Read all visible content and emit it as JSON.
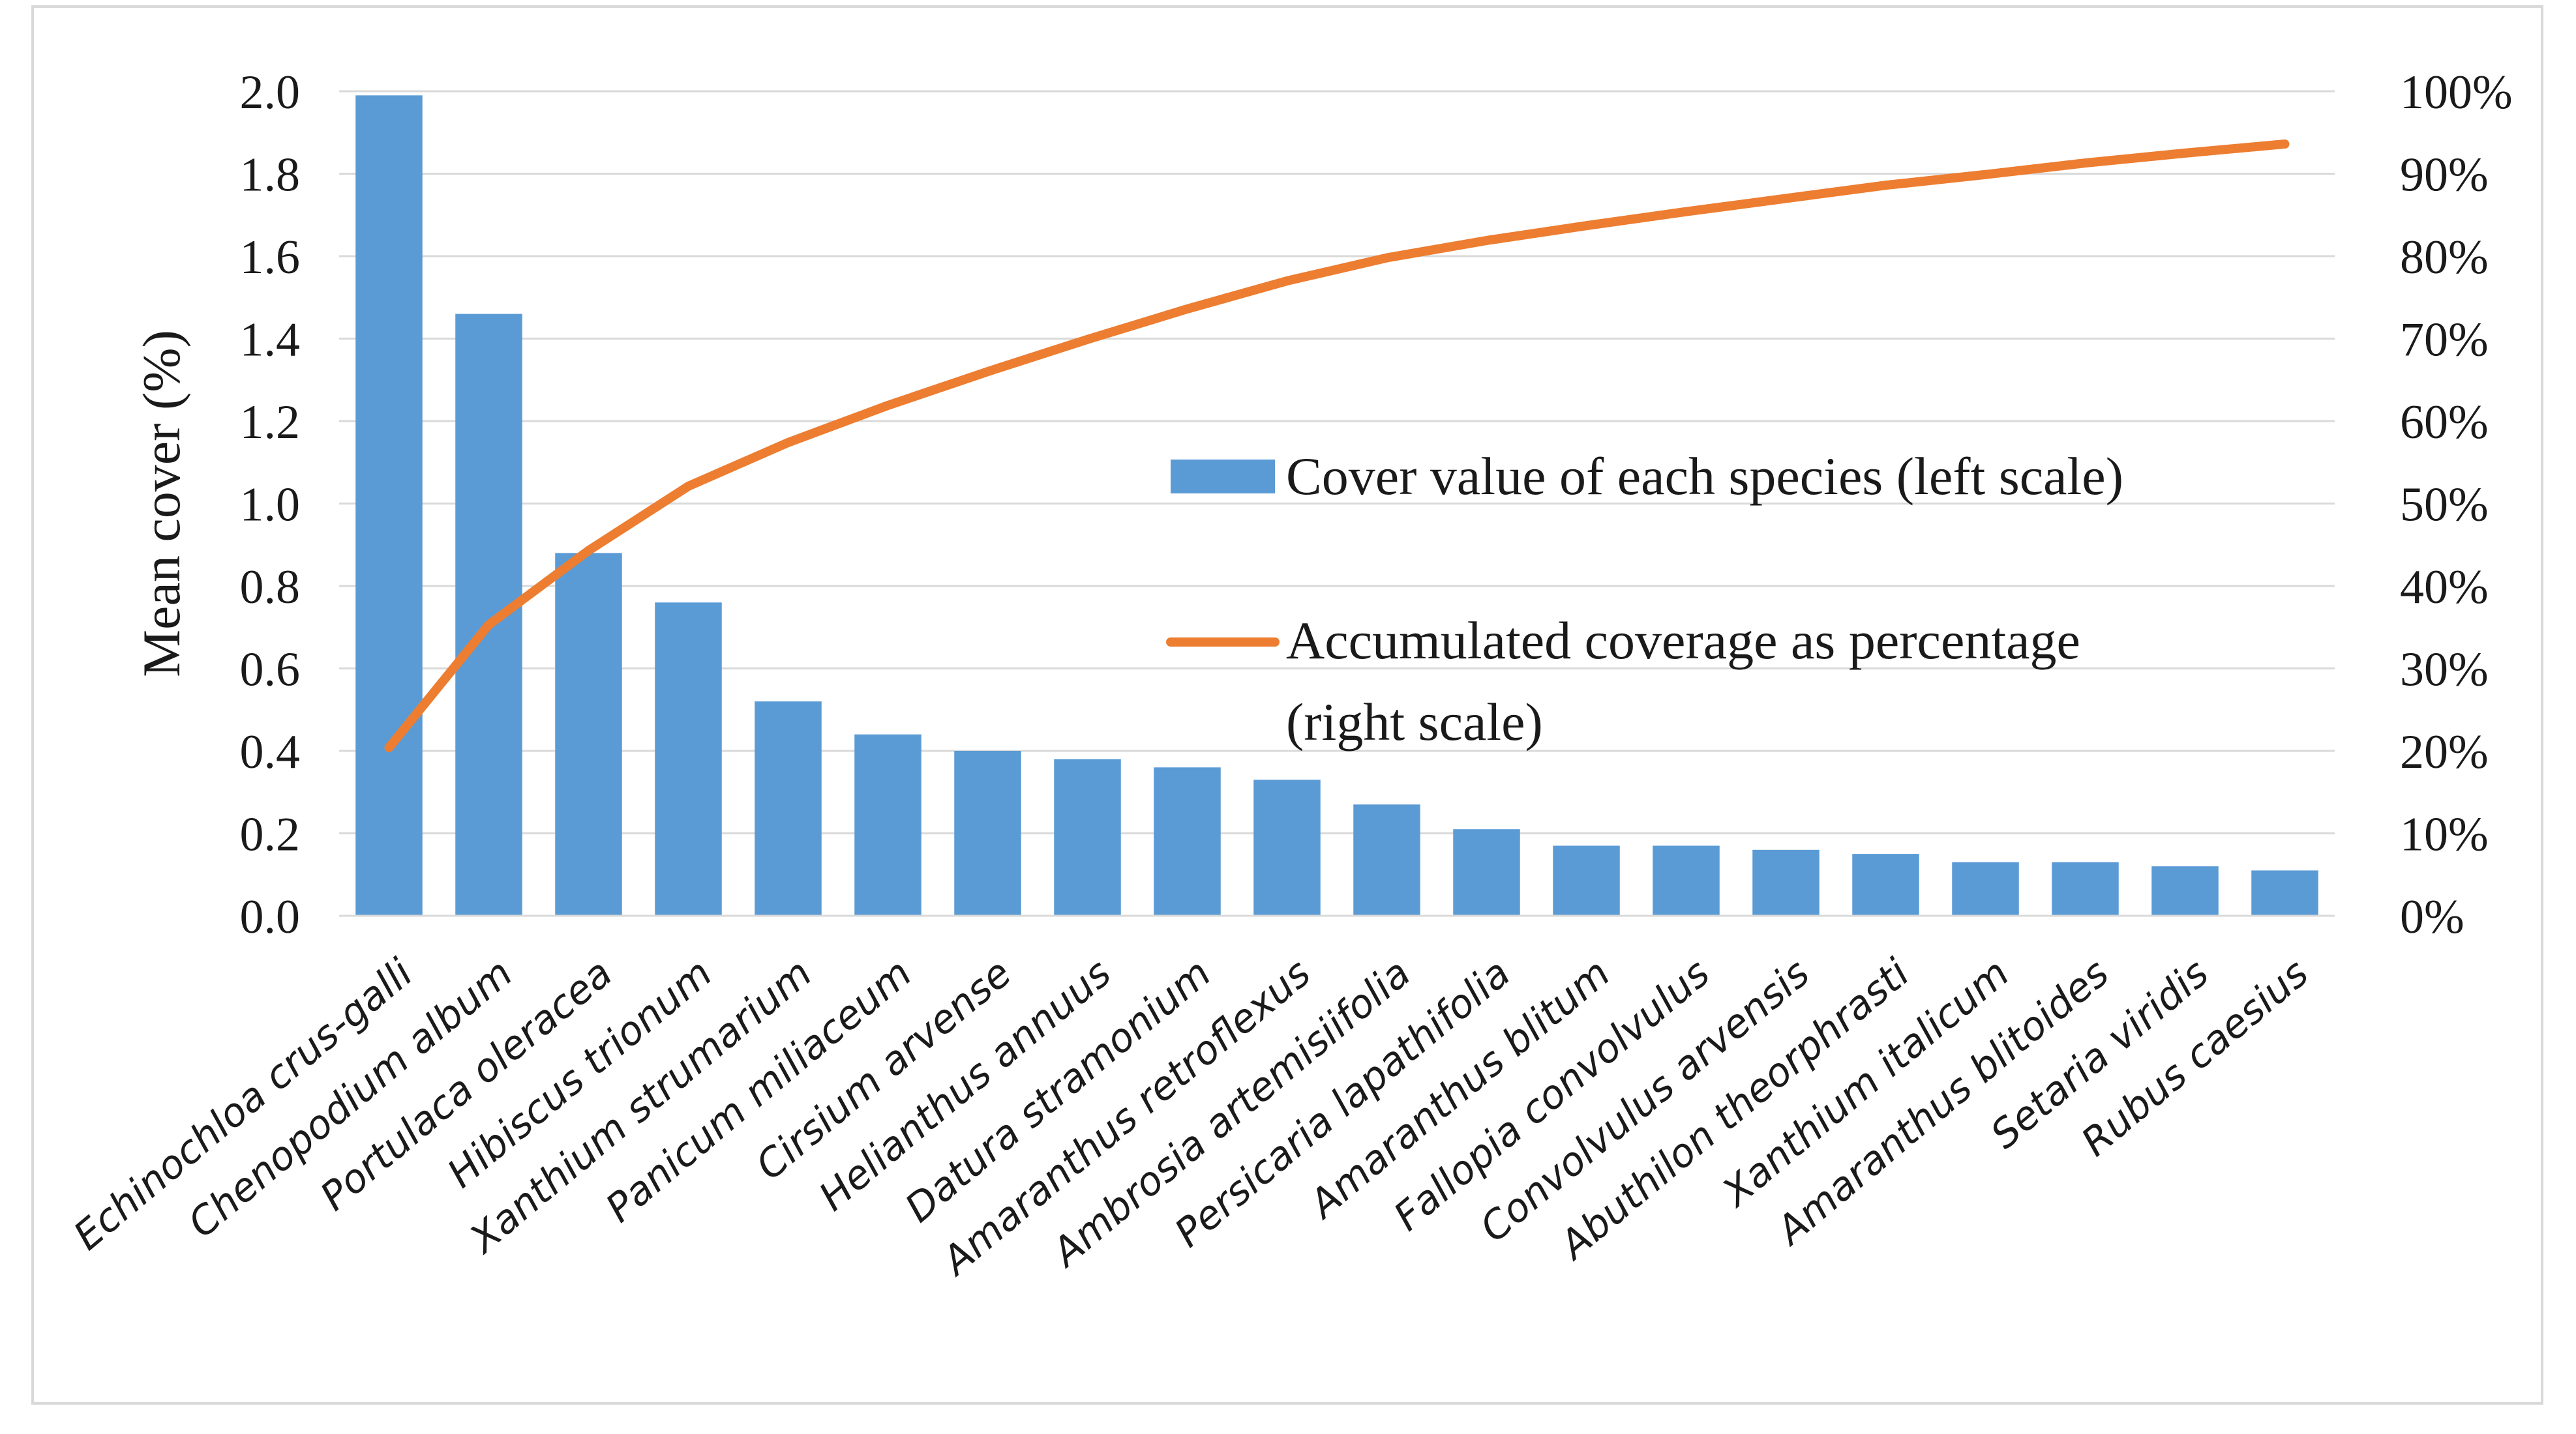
{
  "chart_data": {
    "type": "bar",
    "title": "",
    "categories": [
      "Echinochloa crus-galli",
      "Chenopodium album",
      "Portulaca oleracea",
      "Hibiscus trionum",
      "Xanthium strumarium",
      "Panicum miliaceum",
      "Cirsium arvense",
      "Helianthus annuus",
      "Datura stramonium",
      "Amaranthus retroflexus",
      "Ambrosia artemisiifolia",
      "Persicaria lapathifolia",
      "Amaranthus blitum",
      "Fallopia convolvulus",
      "Convolvulus arvensis",
      "Abuthilon theorphrasti",
      "Xanthium italicum",
      "Amaranthus blitoides",
      "Setaria viridis",
      "Rubus caesius"
    ],
    "series": [
      {
        "name": "Cover value of each species (left scale)",
        "type": "bar",
        "axis": "left",
        "color": "#5b9bd5",
        "values": [
          1.99,
          1.46,
          0.88,
          0.76,
          0.52,
          0.44,
          0.4,
          0.38,
          0.36,
          0.33,
          0.27,
          0.21,
          0.17,
          0.17,
          0.16,
          0.15,
          0.13,
          0.13,
          0.12,
          0.11
        ]
      },
      {
        "name": "Accumulated coverage as percentage (right scale)",
        "type": "line",
        "axis": "right",
        "color": "#ed7d31",
        "values": [
          20.4,
          35.3,
          44.3,
          52.1,
          57.4,
          61.9,
          66.0,
          69.9,
          73.6,
          77.0,
          79.8,
          81.9,
          83.7,
          85.4,
          87.0,
          88.6,
          89.9,
          91.3,
          92.5,
          93.6
        ]
      }
    ],
    "ylabel": "Mean cover (%)",
    "ylim": [
      0,
      2.0
    ],
    "y_ticks": [
      "0.0",
      "0.2",
      "0.4",
      "0.6",
      "0.8",
      "1.0",
      "1.2",
      "1.4",
      "1.6",
      "1.8",
      "2.0"
    ],
    "y2lim": [
      0,
      100
    ],
    "y2_ticks": [
      "0%",
      "10%",
      "20%",
      "30%",
      "40%",
      "50%",
      "60%",
      "70%",
      "80%",
      "90%",
      "100%"
    ],
    "grid": true,
    "gridline_color": "#d9d9d9",
    "legend": {
      "position": "center-right",
      "items": [
        {
          "label_lines": [
            "Cover value of each species (left scale)"
          ],
          "marker": "bar"
        },
        {
          "label_lines": [
            "Accumulated coverage as percentage",
            "(right scale)"
          ],
          "marker": "line"
        }
      ]
    }
  }
}
